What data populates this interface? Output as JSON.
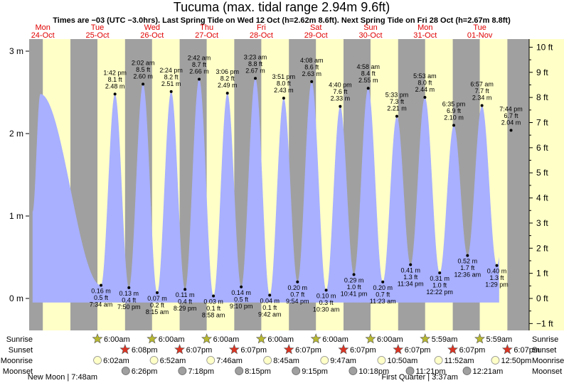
{
  "chart_data": {
    "type": "area",
    "title": "Tucuma (max. tidal range 2.94m 9.6ft)",
    "subtitle": "Times are −03 (UTC −3.0hrs). Last Spring Tide on Wed 12 Oct (h=2.62m 8.6ft). Next Spring Tide on Fri 28 Oct (h=2.67m 8.8ft)",
    "days": [
      {
        "dow": "Mon",
        "date": "24-Oct"
      },
      {
        "dow": "Tue",
        "date": "25-Oct"
      },
      {
        "dow": "Wed",
        "date": "26-Oct"
      },
      {
        "dow": "Thu",
        "date": "27-Oct"
      },
      {
        "dow": "Fri",
        "date": "28-Oct"
      },
      {
        "dow": "Sat",
        "date": "29-Oct"
      },
      {
        "dow": "Sun",
        "date": "30-Oct"
      },
      {
        "dow": "Mon",
        "date": "31-Oct"
      },
      {
        "dow": "Tue",
        "date": "01-Nov"
      }
    ],
    "y_left": {
      "ticks": [
        0,
        1,
        2,
        3
      ],
      "labels": [
        "0 m",
        "1 m",
        "2 m",
        "3 m"
      ],
      "range": [
        -0.15,
        3.1
      ]
    },
    "y_right": {
      "ticks": [
        -1,
        0,
        1,
        2,
        3,
        4,
        5,
        6,
        7,
        8,
        9,
        10
      ],
      "labels": [
        "−1 ft",
        "0 ft",
        "1 ft",
        "2 ft",
        "3 ft",
        "4 ft",
        "5 ft",
        "6 ft",
        "7 ft",
        "8 ft",
        "9 ft",
        "10 ft"
      ]
    },
    "x_range_hours": [
      0,
      216
    ],
    "daylight_hours": [
      [
        6.0,
        18.13
      ],
      [
        30.0,
        42.13
      ],
      [
        54.0,
        66.12
      ],
      [
        78.0,
        90.12
      ],
      [
        102.0,
        114.12
      ],
      [
        126.0,
        138.12
      ],
      [
        150.0,
        162.12
      ],
      [
        173.98,
        186.12
      ],
      [
        197.98,
        210.12
      ]
    ],
    "data_extent_hours": [
      1.5,
      206.5
    ],
    "first_peak": {
      "t": 4.9,
      "h": 2.48
    },
    "tides": [
      {
        "type": "low",
        "t": 31.57,
        "h": 0.16,
        "time": "7:34 am",
        "ft": "0.5 ft",
        "m": "0.16 m"
      },
      {
        "type": "high",
        "t": 37.7,
        "h": 2.48,
        "time": "1:42 pm",
        "ft": "8.1 ft",
        "m": "2.48 m"
      },
      {
        "type": "low",
        "t": 43.83,
        "h": 0.13,
        "time": "7:50 pm",
        "ft": "0.4 ft",
        "m": "0.13 m"
      },
      {
        "type": "high",
        "t": 50.03,
        "h": 2.6,
        "time": "2:02 am",
        "ft": "8.5 ft",
        "m": "2.60 m"
      },
      {
        "type": "low",
        "t": 56.25,
        "h": 0.07,
        "time": "8:15 am",
        "ft": "0.2 ft",
        "m": "0.07 m"
      },
      {
        "type": "high",
        "t": 62.4,
        "h": 2.51,
        "time": "2:24 pm",
        "ft": "8.2 ft",
        "m": "2.51 m"
      },
      {
        "type": "low",
        "t": 68.48,
        "h": 0.11,
        "time": "8:29 pm",
        "ft": "0.4 ft",
        "m": "0.11 m"
      },
      {
        "type": "high",
        "t": 74.7,
        "h": 2.66,
        "time": "2:42 am",
        "ft": "8.7 ft",
        "m": "2.66 m"
      },
      {
        "type": "low",
        "t": 80.97,
        "h": 0.03,
        "time": "8:58 am",
        "ft": "0.1 ft",
        "m": "0.03 m"
      },
      {
        "type": "high",
        "t": 87.1,
        "h": 2.49,
        "time": "3:06 pm",
        "ft": "8.2 ft",
        "m": "2.49 m"
      },
      {
        "type": "low",
        "t": 93.17,
        "h": 0.14,
        "time": "9:10 pm",
        "ft": "0.5 ft",
        "m": "0.14 m"
      },
      {
        "type": "high",
        "t": 99.38,
        "h": 2.67,
        "time": "3:23 am",
        "ft": "8.8 ft",
        "m": "2.67 m"
      },
      {
        "type": "low",
        "t": 105.7,
        "h": 0.04,
        "time": "9:42 am",
        "ft": "0.1 ft",
        "m": "0.04 m"
      },
      {
        "type": "high",
        "t": 111.85,
        "h": 2.43,
        "time": "3:51 pm",
        "ft": "8.0 ft",
        "m": "2.43 m"
      },
      {
        "type": "low",
        "t": 117.9,
        "h": 0.2,
        "time": "9:54 pm",
        "ft": "0.7 ft",
        "m": "0.20 m"
      },
      {
        "type": "high",
        "t": 124.13,
        "h": 2.63,
        "time": "4:08 am",
        "ft": "8.6 ft",
        "m": "2.63 m"
      },
      {
        "type": "low",
        "t": 130.5,
        "h": 0.1,
        "time": "10:30 am",
        "ft": "0.3 ft",
        "m": "0.10 m"
      },
      {
        "type": "high",
        "t": 136.67,
        "h": 2.33,
        "time": "4:40 pm",
        "ft": "7.6 ft",
        "m": "2.33 m"
      },
      {
        "type": "low",
        "t": 142.68,
        "h": 0.29,
        "time": "10:41 pm",
        "ft": "1.0 ft",
        "m": "0.29 m"
      },
      {
        "type": "high",
        "t": 148.97,
        "h": 2.55,
        "time": "4:58 am",
        "ft": "8.4 ft",
        "m": "2.55 m"
      },
      {
        "type": "low",
        "t": 155.38,
        "h": 0.2,
        "time": "11:23 am",
        "ft": "0.7 ft",
        "m": "0.20 m"
      },
      {
        "type": "high",
        "t": 161.55,
        "h": 2.21,
        "time": "5:33 pm",
        "ft": "7.3 ft",
        "m": "2.21 m"
      },
      {
        "type": "low",
        "t": 167.57,
        "h": 0.41,
        "time": "11:34 pm",
        "ft": "1.3 ft",
        "m": "0.41 m"
      },
      {
        "type": "high",
        "t": 173.88,
        "h": 2.44,
        "time": "5:53 am",
        "ft": "8.0 ft",
        "m": "2.44 m"
      },
      {
        "type": "low",
        "t": 180.37,
        "h": 0.31,
        "time": "12:22 pm",
        "ft": "1.0 ft",
        "m": "0.31 m"
      },
      {
        "type": "high",
        "t": 186.58,
        "h": 2.1,
        "time": "6:35 pm",
        "ft": "6.9 ft",
        "m": "2.10 m"
      },
      {
        "type": "low",
        "t": 192.6,
        "h": 0.52,
        "time": "12:36 am",
        "ft": "1.7 ft",
        "m": "0.52 m"
      },
      {
        "type": "high",
        "t": 198.95,
        "h": 2.34,
        "time": "6:57 am",
        "ft": "7.7 ft",
        "m": "2.34 m"
      },
      {
        "type": "low",
        "t": 205.48,
        "h": 0.4,
        "time": "1:29 pm",
        "ft": "1.3 ft",
        "m": "0.40 m"
      },
      {
        "type": "high",
        "t": 211.73,
        "h": 2.04,
        "time": "7:44 pm",
        "ft": "6.7 ft",
        "m": "2.04 m"
      }
    ]
  },
  "legend": {
    "row_labels": [
      "Sunrise",
      "Sunset",
      "Moonrise",
      "Moonset"
    ],
    "sunrise": [
      {
        "t": 30.0,
        "text": "6:00am"
      },
      {
        "t": 54.0,
        "text": "6:00am"
      },
      {
        "t": 78.0,
        "text": "6:00am"
      },
      {
        "t": 102.0,
        "text": "6:00am"
      },
      {
        "t": 126.0,
        "text": "6:00am"
      },
      {
        "t": 150.0,
        "text": "6:00am"
      },
      {
        "t": 173.98,
        "text": "5:59am"
      },
      {
        "t": 197.98,
        "text": "5:59am"
      }
    ],
    "sunset": [
      {
        "t": 42.13,
        "text": "6:08pm"
      },
      {
        "t": 66.12,
        "text": "6:07pm"
      },
      {
        "t": 90.12,
        "text": "6:07pm"
      },
      {
        "t": 114.12,
        "text": "6:07pm"
      },
      {
        "t": 138.12,
        "text": "6:07pm"
      },
      {
        "t": 162.12,
        "text": "6:07pm"
      },
      {
        "t": 186.12,
        "text": "6:07pm"
      },
      {
        "t": 210.12,
        "text": "6:07pm"
      }
    ],
    "moonrise": [
      {
        "t": 30.03,
        "text": "6:02am"
      },
      {
        "t": 54.87,
        "text": "6:52am"
      },
      {
        "t": 79.77,
        "text": "7:46am"
      },
      {
        "t": 104.75,
        "text": "8:45am"
      },
      {
        "t": 129.78,
        "text": "9:47am"
      },
      {
        "t": 154.83,
        "text": "10:50am"
      },
      {
        "t": 179.87,
        "text": "11:52am"
      },
      {
        "t": 204.83,
        "text": "12:50pm"
      }
    ],
    "moonset": [
      {
        "t": 42.43,
        "text": "6:26pm"
      },
      {
        "t": 67.3,
        "text": "7:18pm"
      },
      {
        "t": 92.25,
        "text": "8:15pm"
      },
      {
        "t": 117.25,
        "text": "9:15pm"
      },
      {
        "t": 142.3,
        "text": "10:18pm"
      },
      {
        "t": 167.35,
        "text": "11:21pm"
      },
      {
        "t": 192.35,
        "text": "12:21am"
      }
    ],
    "notes": [
      {
        "t": 30.0,
        "text": "New Moon | 7:48am",
        "anchor": "end"
      },
      {
        "t": 171.62,
        "text": "First Quarter | 3:37am",
        "anchor": "middle"
      }
    ]
  },
  "colors": {
    "night": "#a0a0a0",
    "day": "#ffffc8",
    "water": "#a8b0ff",
    "marker": "#000000",
    "sun_rise": "#b8b830",
    "sun_set": "#dd3322",
    "moon_rise": "#ffffc8",
    "moon_set": "#a0a0a0",
    "day_label": "#e00000"
  }
}
